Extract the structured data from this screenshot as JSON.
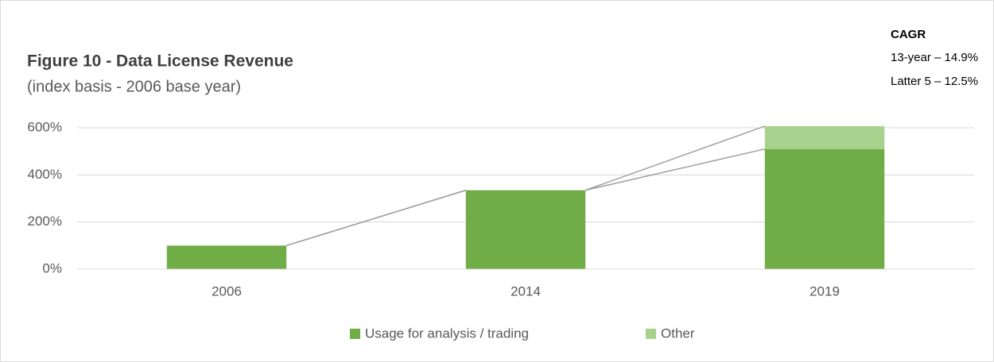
{
  "chart_data": {
    "type": "stacked_bar",
    "title": "Figure 10 - Data License Revenue",
    "subtitle": "(index basis - 2006 base year)",
    "annotations": [
      "CAGR",
      "13-year – 14.9%",
      "Latter 5 – 12.5%"
    ],
    "categories": [
      "2006",
      "2014",
      "2019"
    ],
    "series": [
      {
        "name": "Usage for analysis / trading",
        "color": "#70ad47",
        "values": [
          100,
          335,
          510
        ]
      },
      {
        "name": "Other",
        "color": "#a9d18e",
        "values": [
          0,
          0,
          97
        ]
      }
    ],
    "ylim": [
      0,
      600
    ],
    "yticks": [
      {
        "value": 0,
        "label": "0%"
      },
      {
        "value": 200,
        "label": "200%"
      },
      {
        "value": 400,
        "label": "400%"
      },
      {
        "value": 600,
        "label": "600%"
      }
    ],
    "grid": true,
    "legend": "bottom"
  }
}
